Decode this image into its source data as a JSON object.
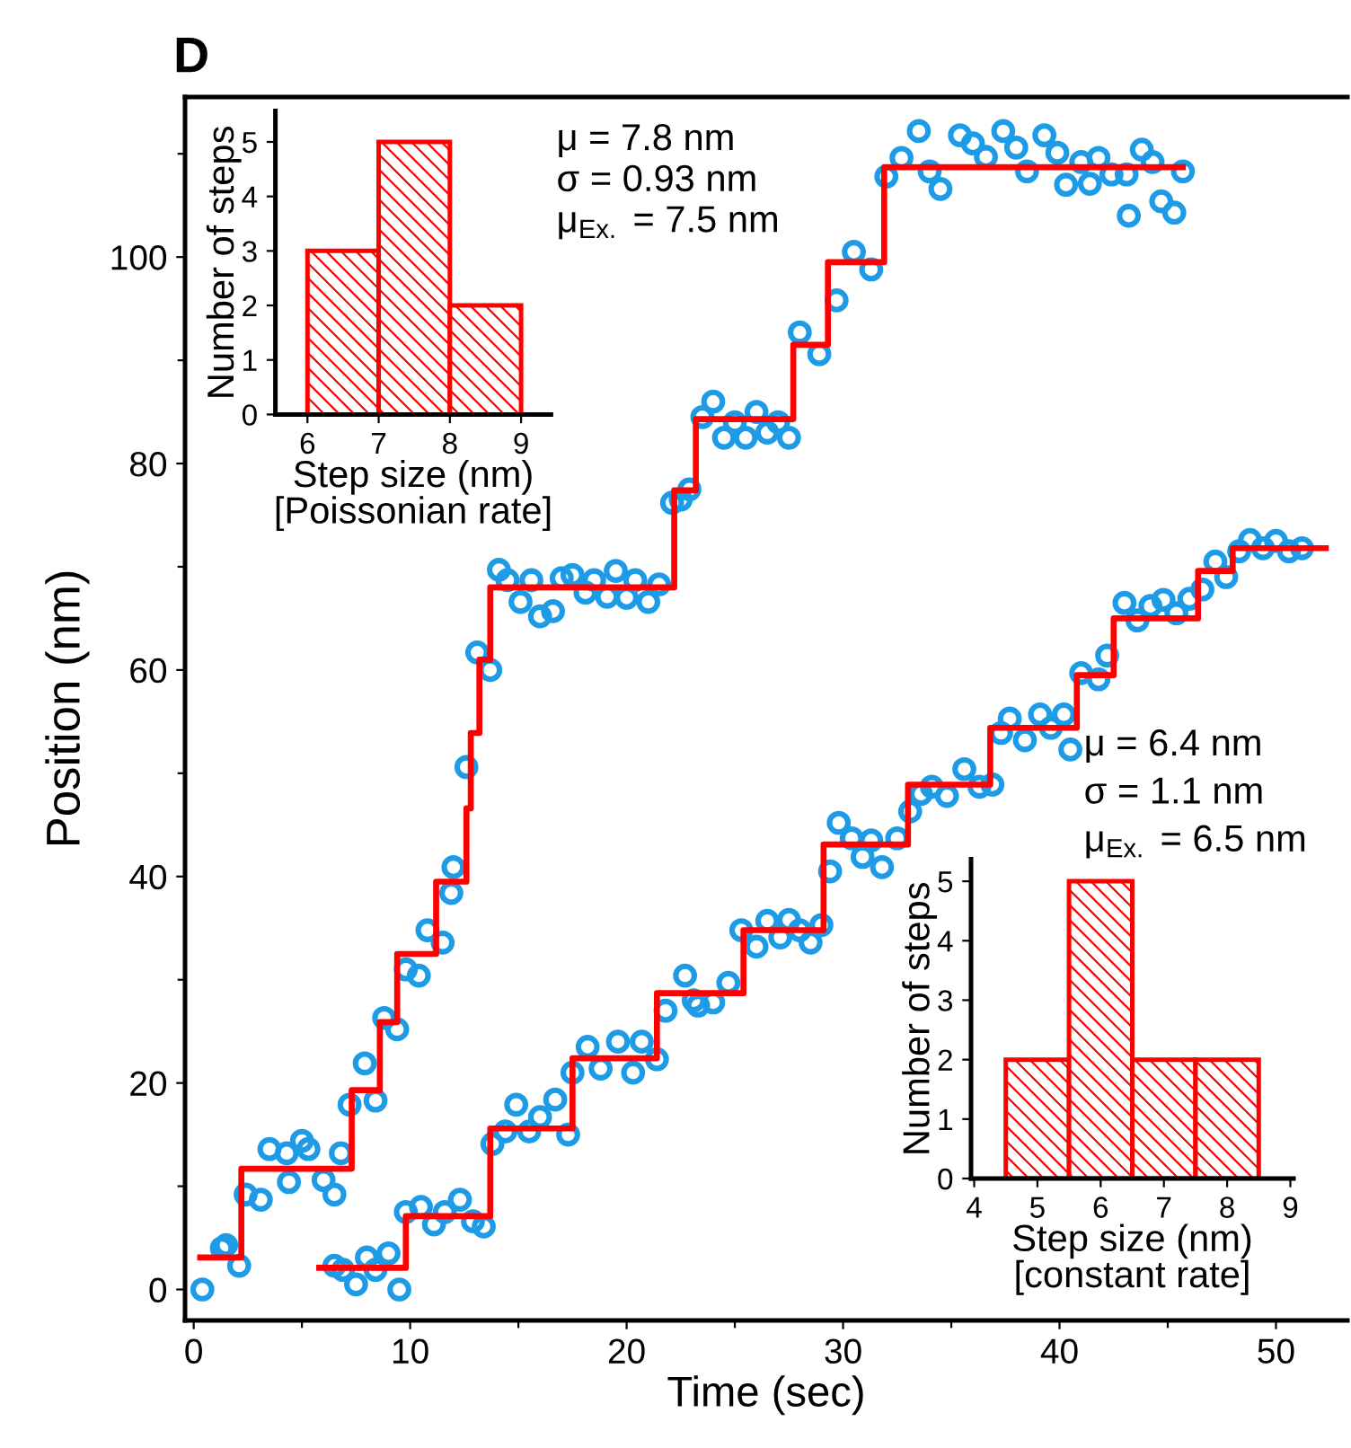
{
  "chart_data": [
    {
      "type": "scatter",
      "title": "D",
      "xlabel": "Time (sec)",
      "ylabel": "Position (nm)",
      "xlim": [
        -0.4,
        53.3
      ],
      "ylim": [
        -3,
        115.5
      ],
      "xticks": [
        0,
        {
          "value": 5,
          "label": null
        },
        10,
        {
          "value": 15,
          "label": null
        },
        20,
        {
          "value": 25,
          "label": null
        },
        30,
        {
          "value": 35,
          "label": null
        },
        40,
        {
          "value": 45,
          "label": null
        },
        50
      ],
      "yticks": [
        0,
        {
          "value": 10,
          "label": null
        },
        20,
        {
          "value": 30,
          "label": null
        },
        40,
        {
          "value": 50,
          "label": null
        },
        60,
        {
          "value": 70,
          "label": null
        },
        80,
        {
          "value": 90,
          "label": null
        },
        100,
        {
          "value": 110,
          "label": null
        }
      ],
      "grid": false,
      "series": [
        {
          "type": "scatter",
          "marker": "circle",
          "color": "#1e9be6",
          "x": [
            0.4,
            1.3,
            1.5,
            2.1,
            2.4,
            3.1,
            3.5,
            4.3,
            4.4,
            5.0,
            5.3,
            6.0,
            6.5,
            6.8,
            7.2,
            7.9,
            8.4,
            8.8,
            9.4,
            9.8,
            10.4,
            10.8,
            11.5,
            11.9,
            12.0,
            12.6,
            13.1,
            13.7,
            14.1,
            14.5,
            15.1,
            15.6,
            16.0,
            16.6,
            17.0,
            17.5,
            18.1,
            18.5,
            19.1,
            19.5,
            20.0,
            20.4,
            21.0,
            21.5,
            22.1,
            22.5,
            22.9,
            23.5,
            24.0,
            24.5,
            25.0,
            25.5,
            26.0,
            26.5,
            27.0,
            27.5,
            28.0,
            28.9,
            29.7,
            30.5,
            31.3,
            32.0,
            32.7,
            33.5,
            34.0,
            34.5,
            35.4,
            36.0,
            36.6,
            37.4,
            38.0,
            38.5,
            39.3,
            39.9,
            40.3,
            41.0,
            41.4,
            41.8,
            42.4,
            43.1,
            43.2,
            43.8,
            44.3,
            44.7,
            45.3,
            45.7
          ],
          "values": [
            0.0,
            4.0,
            4.3,
            2.3,
            9.2,
            8.7,
            13.6,
            13.2,
            10.4,
            14.4,
            13.6,
            10.6,
            9.2,
            13.2,
            17.9,
            21.9,
            18.3,
            26.3,
            25.2,
            31.0,
            30.4,
            34.8,
            33.6,
            38.4,
            40.9,
            50.6,
            61.7,
            60.0,
            69.7,
            68.7,
            66.6,
            68.7,
            65.2,
            65.7,
            68.9,
            69.2,
            67.5,
            68.7,
            67.1,
            69.6,
            67.0,
            68.7,
            66.6,
            68.3,
            76.2,
            76.5,
            77.5,
            84.5,
            86.0,
            82.5,
            84.0,
            82.5,
            85.0,
            83.0,
            84.0,
            82.5,
            92.7,
            90.6,
            95.8,
            100.5,
            98.8,
            107.8,
            109.6,
            112.2,
            108.3,
            106.6,
            111.8,
            111.0,
            109.7,
            112.2,
            110.6,
            108.3,
            111.8,
            110.1,
            107.0,
            109.2,
            107.1,
            109.6,
            108.0,
            108.0,
            104.0,
            110.4,
            109.2,
            105.4,
            104.3,
            108.3
          ]
        },
        {
          "type": "scatter",
          "marker": "circle",
          "color": "#1e9be6",
          "x": [
            6.5,
            6.9,
            7.5,
            8.0,
            8.4,
            9.0,
            9.5,
            9.8,
            10.5,
            11.1,
            11.6,
            12.3,
            12.9,
            13.4,
            13.8,
            14.4,
            14.9,
            15.5,
            16.0,
            16.7,
            17.3,
            17.5,
            18.2,
            18.8,
            19.6,
            20.3,
            20.7,
            21.4,
            21.8,
            22.7,
            23.1,
            23.3,
            24.0,
            24.7,
            25.3,
            26.0,
            26.5,
            27.1,
            27.5,
            28.0,
            28.5,
            29.0,
            29.4,
            29.8,
            30.4,
            30.9,
            31.3,
            31.8,
            32.5,
            33.1,
            33.6,
            34.1,
            34.8,
            35.6,
            36.3,
            36.9,
            37.3,
            37.7,
            38.4,
            39.1,
            39.6,
            40.2,
            40.5,
            41.0,
            41.8,
            42.2,
            43.0,
            43.6,
            44.2,
            44.8,
            45.4,
            46.0,
            46.6,
            47.2,
            47.7,
            48.3,
            48.8,
            49.4,
            50.0,
            50.6,
            51.2
          ],
          "values": [
            2.3,
            1.9,
            0.5,
            3.1,
            1.9,
            3.5,
            0.0,
            7.5,
            8.0,
            6.3,
            7.5,
            8.7,
            6.6,
            6.1,
            14.1,
            15.3,
            17.9,
            15.3,
            16.7,
            18.4,
            15.0,
            21.0,
            23.5,
            21.4,
            24.0,
            21.0,
            24.0,
            22.3,
            27.0,
            30.4,
            28.0,
            27.5,
            27.8,
            29.7,
            34.8,
            33.2,
            35.7,
            34.1,
            35.8,
            34.8,
            33.6,
            35.3,
            40.5,
            45.2,
            43.7,
            41.9,
            43.5,
            40.9,
            43.7,
            46.3,
            48.0,
            48.7,
            47.8,
            50.4,
            48.7,
            48.9,
            53.9,
            55.3,
            53.2,
            55.7,
            54.4,
            55.7,
            52.3,
            59.7,
            59.1,
            61.4,
            66.5,
            64.8,
            66.2,
            66.8,
            65.5,
            66.9,
            67.8,
            70.5,
            69.0,
            71.5,
            72.6,
            71.8,
            72.5,
            71.5,
            71.8
          ]
        },
        {
          "type": "step",
          "color": "#ff0000",
          "x": [
            0.3,
            2.2,
            7.3,
            8.6,
            9.4,
            11.2,
            12.6,
            12.8,
            13.2,
            13.7,
            22.2,
            23.2,
            27.7,
            29.3,
            31.9,
            45.7
          ],
          "values": [
            3.1,
            11.7,
            19.3,
            25.9,
            32.5,
            39.5,
            46.6,
            53.9,
            61.0,
            68.0,
            77.4,
            84.3,
            91.5,
            99.5,
            108.7,
            108.7
          ]
        },
        {
          "type": "step",
          "color": "#ff0000",
          "x": [
            5.8,
            9.8,
            13.7,
            17.5,
            21.4,
            25.4,
            29.1,
            33.0,
            36.8,
            40.8,
            42.5,
            46.4,
            48.0,
            52.3
          ],
          "values": [
            2.1,
            7.1,
            15.6,
            22.4,
            28.7,
            34.8,
            43.1,
            48.9,
            54.4,
            59.5,
            65.0,
            69.6,
            71.8,
            71.8
          ]
        }
      ]
    },
    {
      "type": "histogram",
      "xlabel": "Step size (nm)\n[Poissonian rate]",
      "ylabel": "Number of steps",
      "bins": [
        6,
        7,
        8,
        9
      ],
      "values": [
        3,
        5,
        2
      ],
      "color": "#ff0000",
      "xlim": [
        5.55,
        9.42
      ],
      "ylim": [
        0,
        5.57
      ],
      "xticks": [
        6,
        7,
        8,
        9
      ],
      "yticks": [
        0,
        1,
        2,
        3,
        4,
        5
      ],
      "grid": false,
      "annotations": [
        "μ = 7.8 nm",
        "σ = 0.93 nm",
        "μ$_{Ex.}$ = 7.5 nm"
      ]
    },
    {
      "type": "histogram",
      "xlabel": "Step size (nm)\n[constant rate]",
      "ylabel": "Number of steps",
      "bins": [
        4.5,
        5.5,
        6.5,
        7.5,
        8.5
      ],
      "values": [
        2,
        5,
        2,
        2
      ],
      "color": "#ff0000",
      "xlim": [
        3.95,
        9.05
      ],
      "ylim": [
        0,
        5.37
      ],
      "xticks": [
        4,
        5,
        6,
        7,
        8,
        9
      ],
      "yticks": [
        0,
        1,
        2,
        3,
        4,
        5
      ],
      "grid": false,
      "annotations": [
        "μ = 6.4 nm",
        "σ = 1.1 nm",
        "μ$_{Ex.}$ = 6.5 nm"
      ]
    }
  ]
}
